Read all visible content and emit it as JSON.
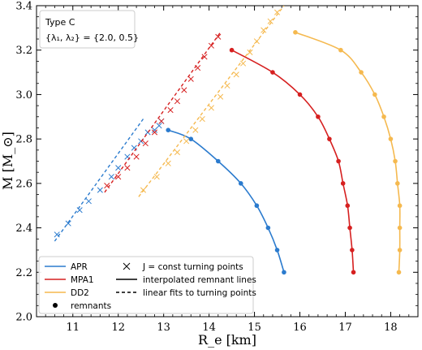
{
  "chart_data": {
    "type": "scatter",
    "xlabel": "R_e [km]",
    "ylabel": "M [M_⊙]",
    "xlim": [
      10.2,
      18.6
    ],
    "ylim": [
      2.0,
      3.4
    ],
    "xticks": [
      11,
      12,
      13,
      14,
      15,
      16,
      17,
      18
    ],
    "yticks": [
      2.0,
      2.2,
      2.4,
      2.6,
      2.8,
      3.0,
      3.2,
      3.4
    ],
    "grid": false,
    "annotation": {
      "line1": "Type C",
      "line2": "{λ₁, λ₂} = {2.0, 0.5}"
    },
    "legend_position": "lower-left",
    "legend": {
      "eos": [
        {
          "label": "APR",
          "color": "#2b7bce"
        },
        {
          "label": "MPA1",
          "color": "#d62020"
        },
        {
          "label": "DD2",
          "color": "#f5b94f"
        }
      ],
      "markers": [
        {
          "label": "remnants"
        },
        {
          "label": "J = const turning points"
        },
        {
          "label": "interpolated remnant lines"
        },
        {
          "label": "linear fits to turning points"
        }
      ]
    },
    "series": [
      {
        "name": "APR",
        "color": "#2b7bce",
        "remnants": [
          [
            13.1,
            2.84
          ],
          [
            13.6,
            2.8
          ],
          [
            14.2,
            2.7
          ],
          [
            14.7,
            2.6
          ],
          [
            15.05,
            2.5
          ],
          [
            15.3,
            2.4
          ],
          [
            15.5,
            2.3
          ],
          [
            15.65,
            2.2
          ]
        ],
        "turning_points": [
          [
            10.65,
            2.37
          ],
          [
            10.9,
            2.42
          ],
          [
            11.15,
            2.48
          ],
          [
            11.35,
            2.52
          ],
          [
            11.6,
            2.57
          ],
          [
            11.85,
            2.63
          ],
          [
            12.0,
            2.67
          ],
          [
            12.2,
            2.72
          ],
          [
            12.35,
            2.76
          ],
          [
            12.5,
            2.79
          ],
          [
            12.65,
            2.83
          ],
          [
            12.8,
            2.84
          ],
          [
            12.9,
            2.86
          ],
          [
            12.95,
            2.88
          ]
        ],
        "fit": [
          [
            10.6,
            2.34
          ],
          [
            12.55,
            2.89
          ]
        ]
      },
      {
        "name": "MPA1",
        "color": "#d62020",
        "remnants": [
          [
            14.5,
            3.2
          ],
          [
            15.4,
            3.1
          ],
          [
            16.0,
            3.0
          ],
          [
            16.4,
            2.9
          ],
          [
            16.65,
            2.8
          ],
          [
            16.85,
            2.7
          ],
          [
            16.95,
            2.6
          ],
          [
            17.05,
            2.5
          ],
          [
            17.1,
            2.4
          ],
          [
            17.15,
            2.3
          ],
          [
            17.18,
            2.2
          ]
        ],
        "turning_points": [
          [
            11.75,
            2.59
          ],
          [
            12.0,
            2.63
          ],
          [
            12.2,
            2.67
          ],
          [
            12.4,
            2.72
          ],
          [
            12.6,
            2.78
          ],
          [
            12.8,
            2.83
          ],
          [
            12.95,
            2.88
          ],
          [
            13.15,
            2.93
          ],
          [
            13.3,
            2.97
          ],
          [
            13.45,
            3.02
          ],
          [
            13.6,
            3.07
          ],
          [
            13.75,
            3.12
          ],
          [
            13.9,
            3.17
          ],
          [
            14.05,
            3.22
          ],
          [
            14.2,
            3.26
          ]
        ],
        "fit": [
          [
            11.7,
            2.56
          ],
          [
            14.25,
            3.28
          ]
        ]
      },
      {
        "name": "DD2",
        "color": "#f5b94f",
        "remnants": [
          [
            15.9,
            3.28
          ],
          [
            16.9,
            3.2
          ],
          [
            17.35,
            3.1
          ],
          [
            17.65,
            3.0
          ],
          [
            17.85,
            2.9
          ],
          [
            18.0,
            2.8
          ],
          [
            18.1,
            2.7
          ],
          [
            18.15,
            2.6
          ],
          [
            18.2,
            2.5
          ],
          [
            18.2,
            2.4
          ],
          [
            18.2,
            2.3
          ],
          [
            18.18,
            2.2
          ]
        ],
        "turning_points": [
          [
            12.55,
            2.57
          ],
          [
            12.85,
            2.63
          ],
          [
            13.1,
            2.69
          ],
          [
            13.3,
            2.74
          ],
          [
            13.5,
            2.79
          ],
          [
            13.7,
            2.84
          ],
          [
            13.85,
            2.89
          ],
          [
            14.05,
            2.94
          ],
          [
            14.25,
            2.99
          ],
          [
            14.4,
            3.04
          ],
          [
            14.6,
            3.09
          ],
          [
            14.75,
            3.14
          ],
          [
            14.9,
            3.19
          ],
          [
            15.05,
            3.24
          ],
          [
            15.2,
            3.29
          ],
          [
            15.35,
            3.33
          ],
          [
            15.5,
            3.37
          ]
        ],
        "fit": [
          [
            12.45,
            2.54
          ],
          [
            15.65,
            3.4
          ]
        ]
      }
    ]
  }
}
